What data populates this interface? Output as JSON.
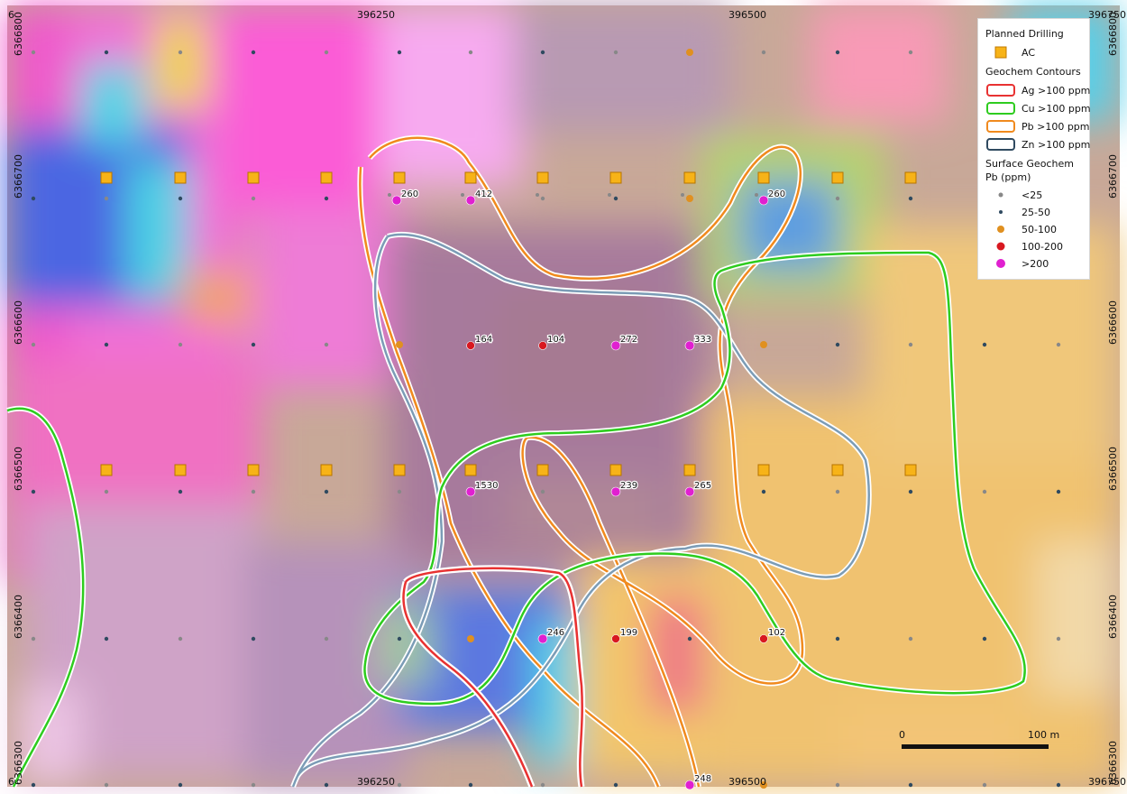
{
  "coords": {
    "top_x": [
      "6",
      "396250",
      "396500",
      "396750"
    ],
    "bottom_x": [
      "6",
      "396250",
      "396500",
      "396750"
    ],
    "left_y": [
      "6366800",
      "6366700",
      "6366600",
      "6366500",
      "6366400",
      "6366300"
    ],
    "right_y": [
      "6366800",
      "6366700",
      "6366600",
      "6366500",
      "6366400",
      "6366300"
    ]
  },
  "legend": {
    "planned_title": "Planned Drilling",
    "ac_label": "AC",
    "contours_title": "Geochem Contours",
    "ag_label": "Ag >100 ppm",
    "cu_label": "Cu >100 ppm",
    "pb_label": "Pb >100 ppm",
    "zn_label": "Zn >100 ppm",
    "surface_title_1": "Surface Geochem",
    "surface_title_2": "Pb (ppm)",
    "classes": [
      "<25",
      "25-50",
      "50-100",
      "100-200",
      ">200"
    ]
  },
  "colors": {
    "ag": "#e83232",
    "cu": "#2ecc1f",
    "pb": "#f08a1e",
    "zn": "#7b9cb6",
    "ac": "#f7b318",
    "c_lt25": "#888888",
    "c_25_50": "#2f4a60",
    "c_50_100": "#e09020",
    "c_100_200": "#d81820",
    "c_gt200": "#e020d0"
  },
  "samples": [
    {
      "value": "260"
    },
    {
      "value": "412"
    },
    {
      "value": "260"
    },
    {
      "value": "164"
    },
    {
      "value": "104"
    },
    {
      "value": "272"
    },
    {
      "value": "333"
    },
    {
      "value": "1530"
    },
    {
      "value": "239"
    },
    {
      "value": "265"
    },
    {
      "value": "246"
    },
    {
      "value": "199"
    },
    {
      "value": "102"
    },
    {
      "value": "248"
    }
  ],
  "scale_bar": {
    "start": "0",
    "end": "100 m"
  }
}
